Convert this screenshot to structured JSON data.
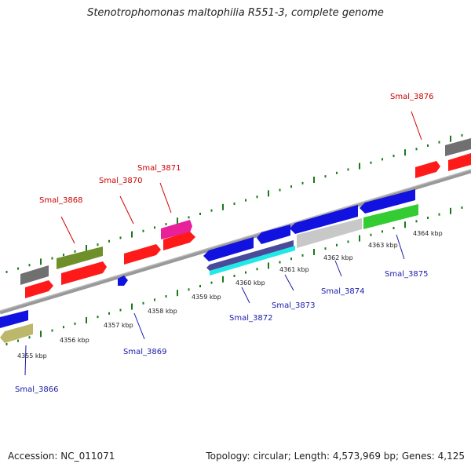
{
  "header": {
    "title": "Stenotrophomonas maltophilia R551-3, complete genome"
  },
  "footer": {
    "accession": "Accession: NC_011071",
    "summary": "Topology: circular; Length: 4,573,969 bp; Genes: 4,125"
  },
  "colors": {
    "forward_label": "#cc0000",
    "reverse_label": "#1a1aaa",
    "tick": "#1a7a1a",
    "backbone": "#888888"
  },
  "scale_ticks": [
    {
      "label": "4355 kbp"
    },
    {
      "label": "4356 kbp"
    },
    {
      "label": "4357 kbp"
    },
    {
      "label": "4358 kbp"
    },
    {
      "label": "4359 kbp"
    },
    {
      "label": "4360 kbp"
    },
    {
      "label": "4361 kbp"
    },
    {
      "label": "4362 kbp"
    },
    {
      "label": "4363 kbp"
    },
    {
      "label": "4364 kbp"
    }
  ],
  "gene_labels": [
    {
      "name": "Smal_3866",
      "strand": "reverse"
    },
    {
      "name": "Smal_3868",
      "strand": "forward"
    },
    {
      "name": "Smal_3869",
      "strand": "reverse"
    },
    {
      "name": "Smal_3870",
      "strand": "forward"
    },
    {
      "name": "Smal_3871",
      "strand": "forward"
    },
    {
      "name": "Smal_3872",
      "strand": "reverse"
    },
    {
      "name": "Smal_3873",
      "strand": "reverse"
    },
    {
      "name": "Smal_3874",
      "strand": "reverse"
    },
    {
      "name": "Smal_3875",
      "strand": "reverse"
    },
    {
      "name": "Smal_3876",
      "strand": "forward"
    }
  ]
}
